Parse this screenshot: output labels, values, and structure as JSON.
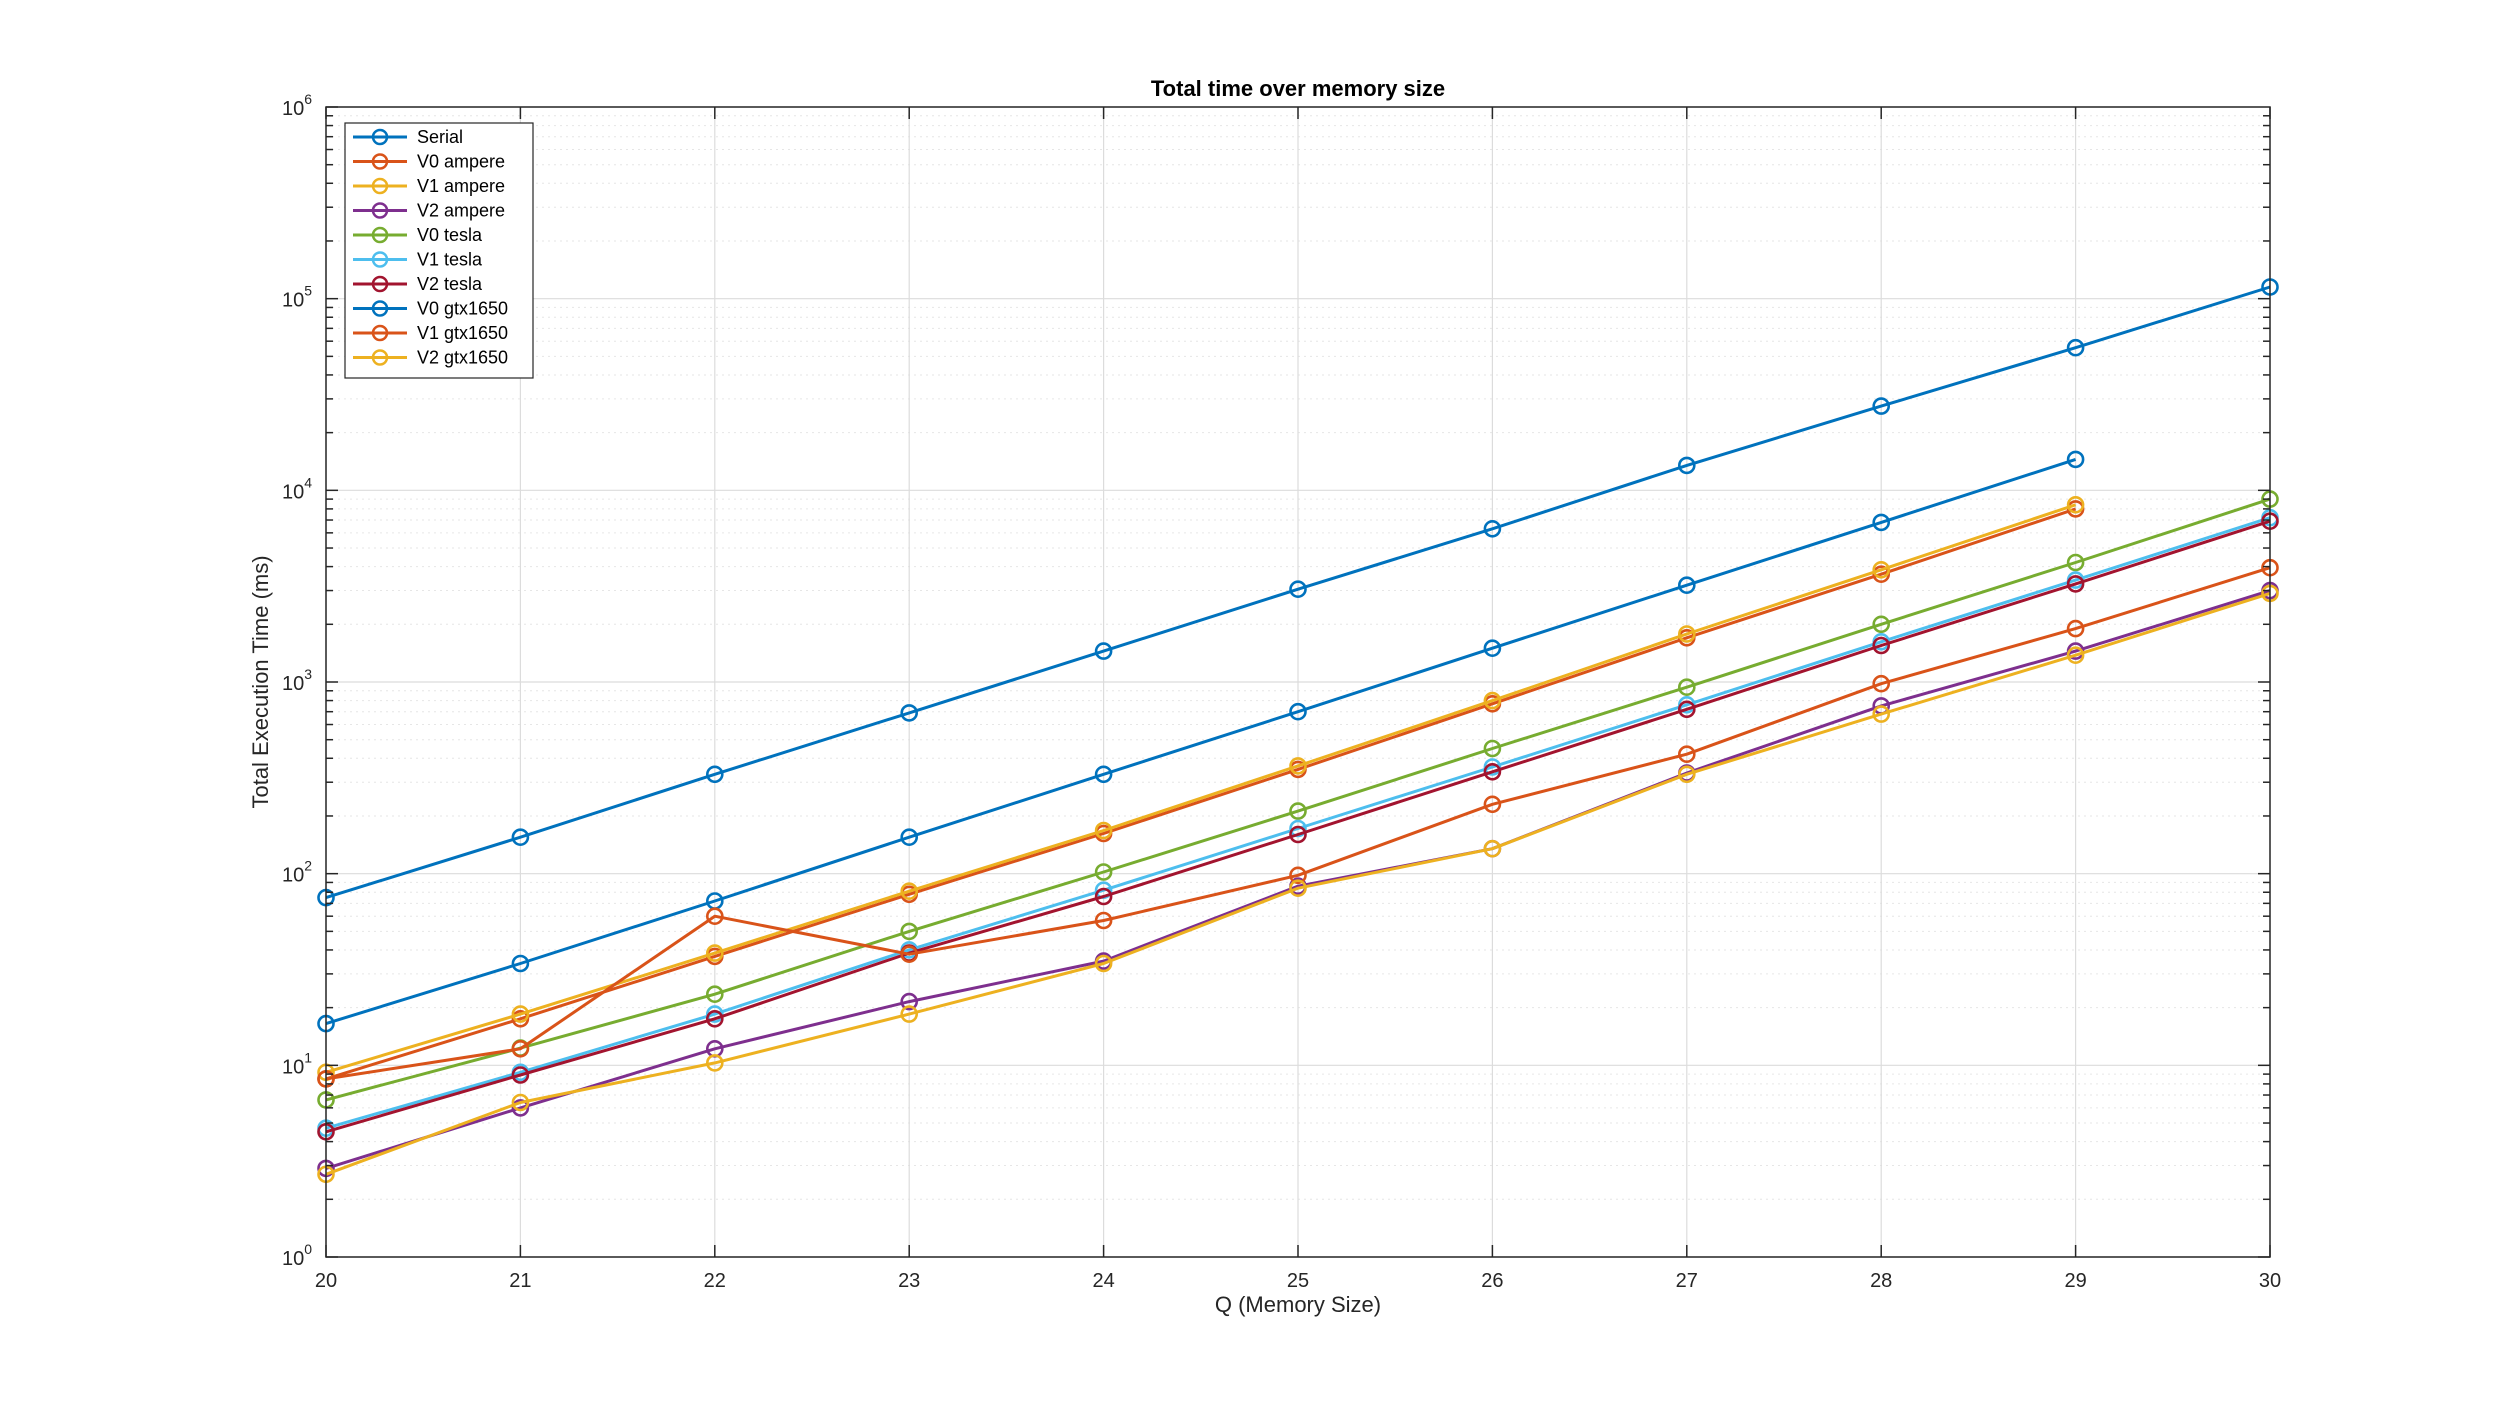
{
  "chart_data": {
    "type": "line",
    "title": "Total time over memory size",
    "xlabel": "Q (Memory Size)",
    "ylabel": "Total Execution Time (ms)",
    "xlim": [
      20,
      30
    ],
    "ylim": [
      1,
      1000000
    ],
    "yscale": "log",
    "grid": true,
    "minor_grid": true,
    "legend_position": "top-left",
    "x_ticks": [
      "20",
      "21",
      "22",
      "23",
      "24",
      "25",
      "26",
      "27",
      "28",
      "29",
      "30"
    ],
    "y_ticks": [
      {
        "base": "10",
        "exp": "0"
      },
      {
        "base": "10",
        "exp": "1"
      },
      {
        "base": "10",
        "exp": "2"
      },
      {
        "base": "10",
        "exp": "3"
      },
      {
        "base": "10",
        "exp": "4"
      },
      {
        "base": "10",
        "exp": "5"
      },
      {
        "base": "10",
        "exp": "6"
      }
    ],
    "series": [
      {
        "name": "Serial",
        "color": "#0072BD",
        "x": [
          20,
          21,
          22,
          23,
          24,
          25,
          26,
          27,
          28,
          29,
          30
        ],
        "values": [
          75,
          155,
          330,
          690,
          1450,
          3050,
          6300,
          13500,
          27500,
          55500,
          115000
        ]
      },
      {
        "name": "V0 ampere",
        "color": "#D95319",
        "x": [
          20,
          21,
          22,
          23,
          24,
          25,
          26,
          27,
          28,
          29
        ],
        "values": [
          8.5,
          17.5,
          37,
          78,
          162,
          350,
          770,
          1700,
          3650,
          8000
        ]
      },
      {
        "name": "V1 ampere",
        "color": "#EDB120",
        "x": [
          20,
          21,
          22,
          23,
          24,
          25,
          26,
          27,
          28,
          29
        ],
        "values": [
          9.2,
          18.5,
          38.5,
          81,
          168,
          365,
          800,
          1780,
          3850,
          8400
        ]
      },
      {
        "name": "V2 ampere",
        "color": "#7E2F8E",
        "x": [
          20,
          21,
          22,
          23,
          24,
          25,
          26,
          27,
          28,
          29,
          30
        ],
        "values": [
          2.9,
          6,
          12.2,
          21.5,
          35,
          86,
          135,
          335,
          750,
          1450,
          3000
        ]
      },
      {
        "name": "V0 tesla",
        "color": "#77AC30",
        "x": [
          20,
          21,
          22,
          23,
          24,
          25,
          26,
          27,
          28,
          29,
          30
        ],
        "values": [
          6.6,
          12.3,
          23.5,
          50,
          102,
          212,
          450,
          940,
          2000,
          4200,
          9000
        ]
      },
      {
        "name": "V1 tesla",
        "color": "#4DBEEE",
        "x": [
          20,
          21,
          22,
          23,
          24,
          25,
          26,
          27,
          28,
          29,
          30
        ],
        "values": [
          4.7,
          9.2,
          18.5,
          40,
          82,
          172,
          360,
          760,
          1620,
          3400,
          7200
        ]
      },
      {
        "name": "V2 tesla",
        "color": "#A2142F",
        "x": [
          20,
          21,
          22,
          23,
          24,
          25,
          26,
          27,
          28,
          29,
          30
        ],
        "values": [
          4.5,
          8.9,
          17.5,
          38.5,
          76,
          160,
          340,
          720,
          1550,
          3250,
          6900
        ]
      },
      {
        "name": "V0 gtx1650",
        "color": "#0072BD",
        "x": [
          20,
          21,
          22,
          23,
          24,
          25,
          26,
          27,
          28,
          29
        ],
        "values": [
          16.5,
          34,
          72,
          155,
          330,
          700,
          1500,
          3200,
          6800,
          14500
        ]
      },
      {
        "name": "V1 gtx1650",
        "color": "#D95319",
        "x": [
          20,
          21,
          22,
          23,
          24,
          25,
          26,
          27,
          28,
          29,
          30
        ],
        "values": [
          8.5,
          12.2,
          60,
          38,
          57,
          98,
          230,
          420,
          980,
          1900,
          3950
        ]
      },
      {
        "name": "V2 gtx1650",
        "color": "#EDB120",
        "x": [
          20,
          21,
          22,
          23,
          24,
          25,
          26,
          27,
          28,
          29,
          30
        ],
        "values": [
          2.7,
          6.4,
          10.3,
          18.5,
          34,
          84,
          135,
          330,
          680,
          1380,
          2900
        ]
      }
    ]
  }
}
